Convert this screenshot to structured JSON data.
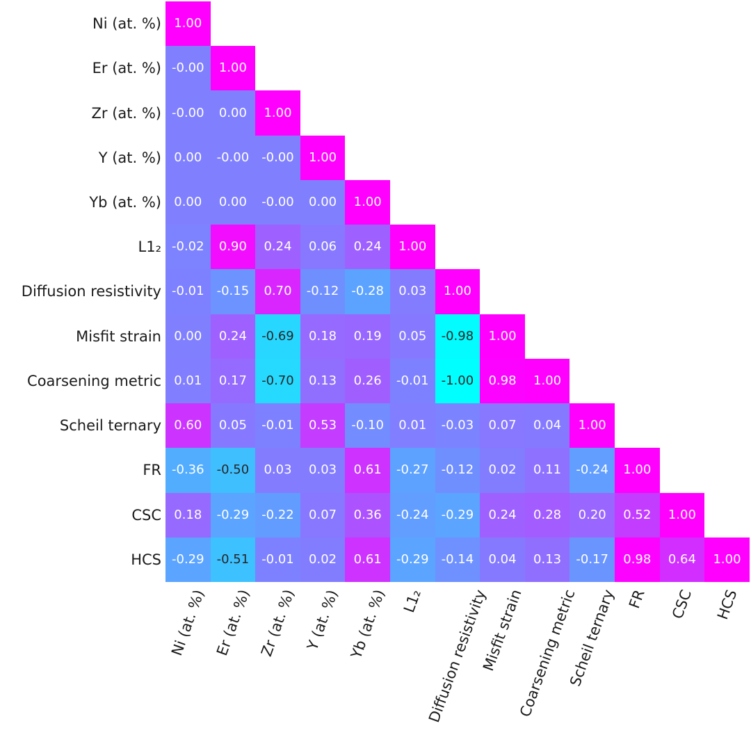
{
  "chart_data": {
    "type": "heatmap",
    "variant": "lower-triangular correlation matrix",
    "title": "",
    "xlabel": "",
    "ylabel": "",
    "labels": [
      "Ni (at. %)",
      "Er (at. %)",
      "Zr (at. %)",
      "Y (at. %)",
      "Yb (at. %)",
      "L1₂",
      "Diffusion resistivity",
      "Misfit strain",
      "Coarsening metric",
      "Scheil ternary",
      "FR",
      "CSC",
      "HCS"
    ],
    "matrix": [
      [
        "1.00"
      ],
      [
        "-0.00",
        "1.00"
      ],
      [
        "-0.00",
        "0.00",
        "1.00"
      ],
      [
        "0.00",
        "-0.00",
        "-0.00",
        "1.00"
      ],
      [
        "0.00",
        "0.00",
        "-0.00",
        "0.00",
        "1.00"
      ],
      [
        "-0.02",
        "0.90",
        "0.24",
        "0.06",
        "0.24",
        "1.00"
      ],
      [
        "-0.01",
        "-0.15",
        "0.70",
        "-0.12",
        "-0.28",
        "0.03",
        "1.00"
      ],
      [
        "0.00",
        "0.24",
        "-0.69",
        "0.18",
        "0.19",
        "0.05",
        "-0.98",
        "1.00"
      ],
      [
        "0.01",
        "0.17",
        "-0.70",
        "0.13",
        "0.26",
        "-0.01",
        "-1.00",
        "0.98",
        "1.00"
      ],
      [
        "0.60",
        "0.05",
        "-0.01",
        "0.53",
        "-0.10",
        "0.01",
        "-0.03",
        "0.07",
        "0.04",
        "1.00"
      ],
      [
        "-0.36",
        "-0.50",
        "0.03",
        "0.03",
        "0.61",
        "-0.27",
        "-0.12",
        "0.02",
        "0.11",
        "-0.24",
        "1.00"
      ],
      [
        "0.18",
        "-0.29",
        "-0.22",
        "0.07",
        "0.36",
        "-0.24",
        "-0.29",
        "0.24",
        "0.28",
        "0.20",
        "0.52",
        "1.00"
      ],
      [
        "-0.29",
        "-0.51",
        "-0.01",
        "0.02",
        "0.61",
        "-0.29",
        "-0.14",
        "0.04",
        "0.13",
        "-0.17",
        "0.98",
        "0.64",
        "1.00"
      ]
    ],
    "annotation_format": "%.2f",
    "vmin": -1,
    "vmax": 1,
    "colormap": "cool",
    "grid": false,
    "legend": "none",
    "x_tick_rotation_deg": 70,
    "colors": {
      "cmap_low": "#00ffff",
      "cmap_mid": "#8080ff",
      "cmap_high": "#ff00ff",
      "annot_light": "#ffffff",
      "annot_dark": "#262626",
      "tick_label": "#1a1a1a",
      "background": "#ffffff"
    }
  }
}
